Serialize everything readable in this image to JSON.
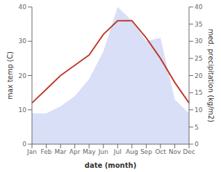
{
  "chart_data": {
    "type": "line",
    "xlabel": "date (month)",
    "ylabel": "max temp (C)",
    "y2label": "med. precipitation (kg/m2)",
    "categories": [
      "Jan",
      "Feb",
      "Mar",
      "Apr",
      "May",
      "Jun",
      "Jul",
      "Aug",
      "Sep",
      "Oct",
      "Nov",
      "Dec"
    ],
    "series": [
      {
        "type": "area",
        "axis": "y2",
        "color": "#b8c5ee",
        "values": [
          9,
          9,
          11,
          14,
          19,
          27,
          40,
          36,
          30,
          31,
          13,
          9
        ]
      },
      {
        "type": "line",
        "color": "#c0392b",
        "values": [
          12,
          16,
          20,
          23,
          26,
          32,
          36,
          36,
          31,
          25,
          18,
          12
        ]
      }
    ],
    "ylim": [
      0,
      40
    ],
    "yticks": [
      0,
      10,
      20,
      30,
      40
    ],
    "y2lim": [
      0,
      40
    ],
    "y2ticks": [
      0,
      5,
      10,
      15,
      20,
      25,
      30,
      35,
      40
    ],
    "grid": false
  }
}
